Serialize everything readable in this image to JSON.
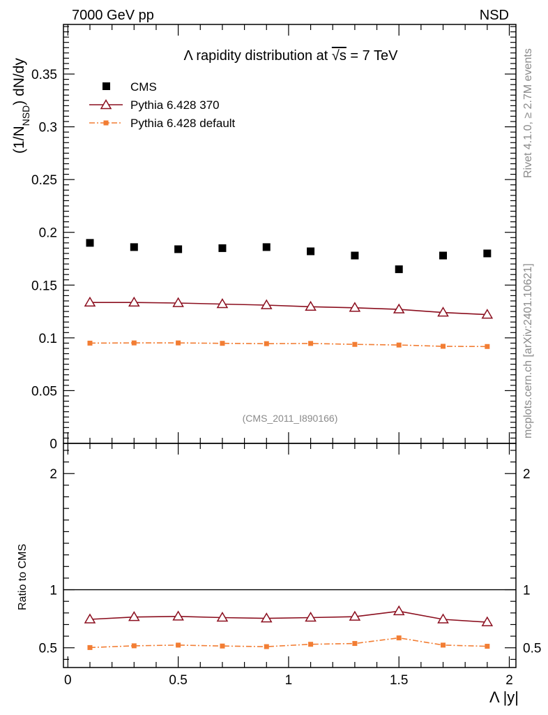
{
  "header": {
    "left": "7000 GeV pp",
    "right": "NSD"
  },
  "side_texts": {
    "rivet": "Rivet 4.1.0, ≥ 2.7M events",
    "mcplots": "mcplots.cern.ch [arXiv:2401.10621]"
  },
  "chart_data": {
    "type": "scatter",
    "title": {
      "prefix": "Λ rapidity distribution at ",
      "sqrt": "√s",
      "suffix": " = 7 TeV"
    },
    "ref_label": "(CMS_2011_I890166)",
    "xlabel": "Λ |y|",
    "ylabel": {
      "a": "(1/N",
      "sub": "NSD",
      "b": ") dN/dy"
    },
    "ratio_ylabel": "Ratio to CMS",
    "xlim": [
      -0.02,
      2.03
    ],
    "ylim": [
      0,
      0.397
    ],
    "ratio_ylim": [
      0.33,
      2.26
    ],
    "x_ticks": [
      0,
      0.5,
      1,
      1.5,
      2
    ],
    "x_tick_labels": [
      "0",
      "0.5",
      "1",
      "1.5",
      "2"
    ],
    "y_ticks": [
      0.05,
      0.1,
      0.15,
      0.2,
      0.25,
      0.3,
      0.35
    ],
    "y_tick_labels": [
      "0.05",
      "0.1",
      "0.15",
      "0.2",
      "0.25",
      "0.3",
      "0.35"
    ],
    "y_zero_label": "0",
    "ratio_ticks": [
      0.5,
      1,
      2
    ],
    "ratio_tick_labels": [
      "0.5",
      "1",
      "2"
    ],
    "x": [
      0.1,
      0.3,
      0.5,
      0.7,
      0.9,
      1.1,
      1.3,
      1.5,
      1.7,
      1.9
    ],
    "series": [
      {
        "name": "CMS",
        "marker": "square",
        "color": "#000000",
        "values": [
          0.19,
          0.186,
          0.184,
          0.185,
          0.186,
          0.182,
          0.178,
          0.165,
          0.178,
          0.18
        ]
      },
      {
        "name": "Pythia 6.428 370",
        "marker": "triangle-open",
        "color": "#8b0e1e",
        "values": [
          0.1335,
          0.1335,
          0.133,
          0.132,
          0.131,
          0.1295,
          0.1285,
          0.127,
          0.124,
          0.122
        ],
        "ratio": [
          0.745,
          0.765,
          0.77,
          0.76,
          0.753,
          0.76,
          0.768,
          0.815,
          0.745,
          0.72
        ]
      },
      {
        "name": "Pythia 6.428 default",
        "marker": "square-small",
        "color": "#f27d33",
        "values": [
          0.095,
          0.0952,
          0.0952,
          0.0948,
          0.0945,
          0.0947,
          0.0938,
          0.0932,
          0.092,
          0.0918
        ],
        "ratio": [
          0.502,
          0.517,
          0.523,
          0.515,
          0.51,
          0.53,
          0.537,
          0.585,
          0.523,
          0.513
        ]
      }
    ]
  }
}
